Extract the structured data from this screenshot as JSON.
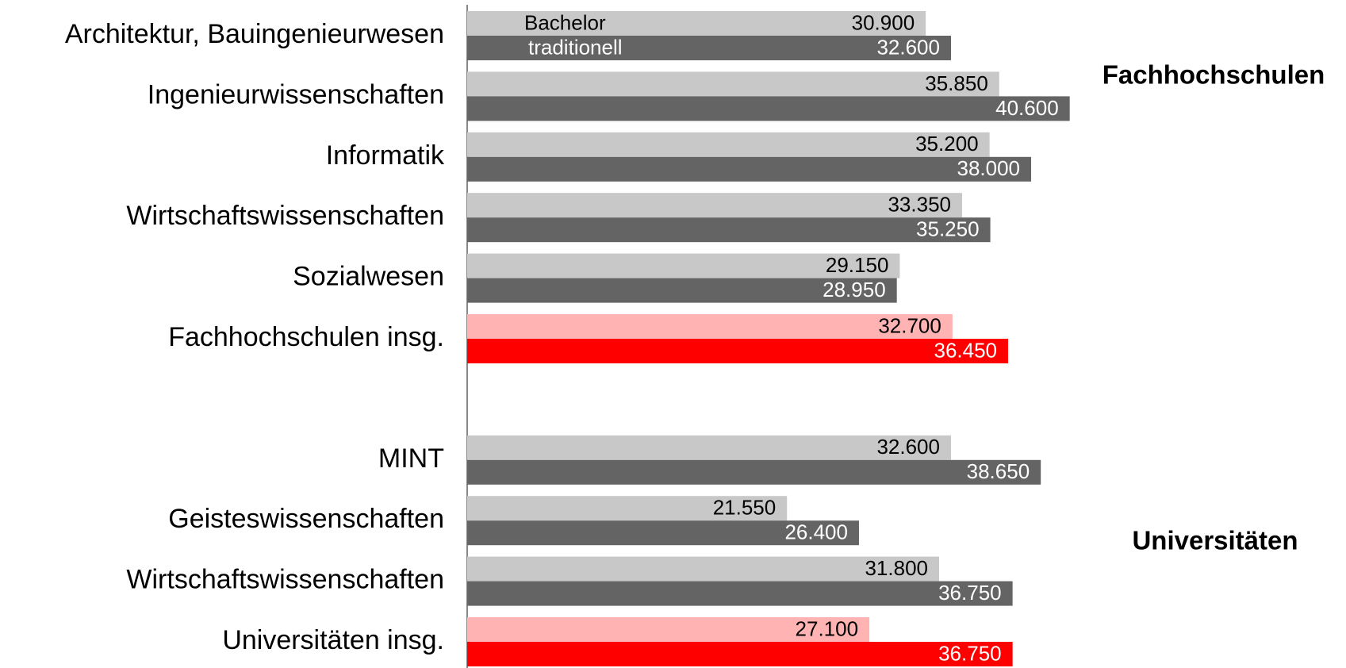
{
  "chart_data": {
    "type": "hbar",
    "categories": [
      "Architektur, Bauingenieurwesen",
      "Ingenieurwissenschaften",
      "Informatik",
      "Wirtschaftswissenschaften",
      "Sozialwesen",
      "Fachhochschulen insg.",
      null,
      "MINT",
      "Geisteswissenschaften",
      "Wirtschaftswissenschaften",
      "Universitäten insg."
    ],
    "series": [
      {
        "name": "Bachelor",
        "color": "#c8c8c8",
        "label_color": "#000000",
        "colors": [
          "#c8c8c8",
          "#c8c8c8",
          "#c8c8c8",
          "#c8c8c8",
          "#c8c8c8",
          "#ffb3b3",
          null,
          "#c8c8c8",
          "#c8c8c8",
          "#c8c8c8",
          "#ffb3b3"
        ],
        "values": [
          30900,
          35850,
          35200,
          33350,
          29150,
          32700,
          null,
          32600,
          21550,
          31800,
          27100
        ],
        "value_labels": [
          "30.900",
          "35.850",
          "35.200",
          "33.350",
          "29.150",
          "32.700",
          null,
          "32.600",
          "21.550",
          "31.800",
          "27.100"
        ]
      },
      {
        "name": "traditionell",
        "color": "#646464",
        "label_color": "#ffffff",
        "colors": [
          "#646464",
          "#646464",
          "#646464",
          "#646464",
          "#646464",
          "#ff0000",
          null,
          "#646464",
          "#646464",
          "#646464",
          "#ff0000"
        ],
        "values": [
          32600,
          40600,
          38000,
          35250,
          28950,
          36450,
          null,
          38650,
          26400,
          36750,
          36750
        ],
        "value_labels": [
          "32.600",
          "40.600",
          "38.000",
          "35.250",
          "28.950",
          "36.450",
          null,
          "38.650",
          "26.400",
          "36.750",
          "36.750"
        ]
      }
    ],
    "xlim": [
      0,
      45000
    ],
    "annotations": [
      "Fachhochschulen",
      "Universitäten"
    ]
  }
}
